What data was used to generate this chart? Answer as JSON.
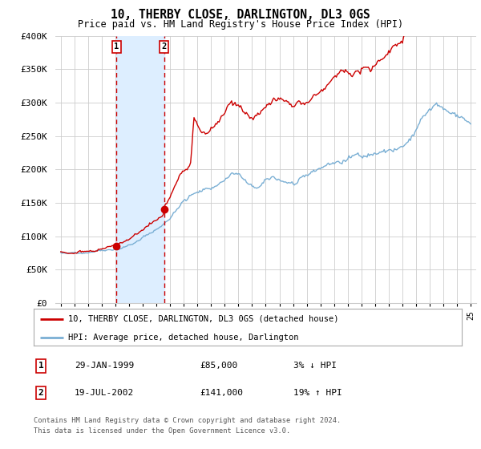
{
  "title": "10, THERBY CLOSE, DARLINGTON, DL3 0GS",
  "subtitle": "Price paid vs. HM Land Registry's House Price Index (HPI)",
  "ylabel_ticks": [
    "£0",
    "£50K",
    "£100K",
    "£150K",
    "£200K",
    "£250K",
    "£300K",
    "£350K",
    "£400K"
  ],
  "ylim": [
    0,
    400000
  ],
  "yticks": [
    0,
    50000,
    100000,
    150000,
    200000,
    250000,
    300000,
    350000,
    400000
  ],
  "sale1_date_num": 1999.08,
  "sale1_price": 85000,
  "sale1_label": "1",
  "sale1_text": "29-JAN-1999",
  "sale1_amount": "£85,000",
  "sale1_pct": "3% ↓ HPI",
  "sale2_date_num": 2002.55,
  "sale2_price": 141000,
  "sale2_label": "2",
  "sale2_text": "19-JUL-2002",
  "sale2_amount": "£141,000",
  "sale2_pct": "19% ↑ HPI",
  "property_color": "#cc0000",
  "hpi_color": "#7aafd4",
  "shade_color": "#ddeeff",
  "vline_color": "#cc0000",
  "legend_property": "10, THERBY CLOSE, DARLINGTON, DL3 0GS (detached house)",
  "legend_hpi": "HPI: Average price, detached house, Darlington",
  "footer1": "Contains HM Land Registry data © Crown copyright and database right 2024.",
  "footer2": "This data is licensed under the Open Government Licence v3.0.",
  "background_color": "#ffffff",
  "grid_color": "#cccccc"
}
